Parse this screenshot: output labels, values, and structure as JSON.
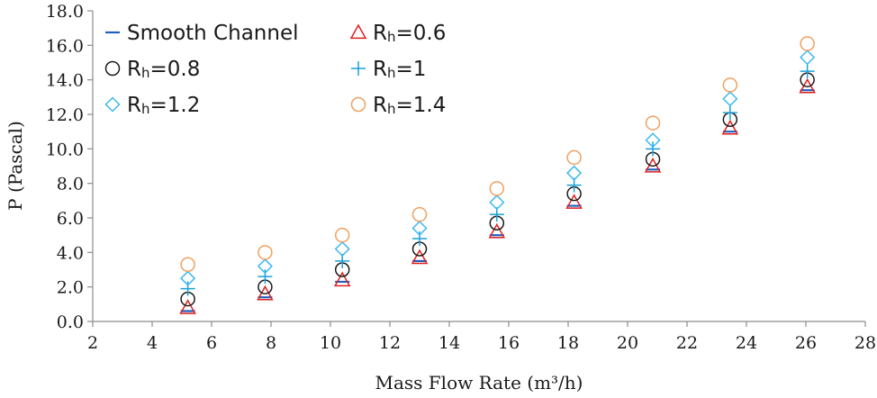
{
  "chart_data": {
    "type": "scatter",
    "title": "",
    "xlabel": "Mass Flow Rate (m³/h)",
    "ylabel": "P (Pascal)",
    "xlim": [
      2,
      28
    ],
    "ylim": [
      0,
      18
    ],
    "x_ticks": [
      "2",
      "4",
      "6",
      "8",
      "10",
      "12",
      "14",
      "16",
      "18",
      "20",
      "22",
      "24",
      "26",
      "28"
    ],
    "y_ticks": [
      "0.0",
      "2.0",
      "4.0",
      "6.0",
      "8.0",
      "10.0",
      "12.0",
      "14.0",
      "16.0",
      "18.0"
    ],
    "x": [
      5.2,
      7.8,
      10.4,
      13.0,
      15.6,
      18.2,
      20.85,
      23.45,
      26.05
    ],
    "series": [
      {
        "name": "Smooth Channel",
        "label_main": "Smooth Channel",
        "label_sub": "",
        "label_tail": "",
        "marker": "dash",
        "color": "#1f5fbf",
        "values": [
          0.6,
          1.4,
          2.3,
          3.5,
          5.0,
          6.7,
          8.8,
          11.0,
          13.4
        ]
      },
      {
        "name": "Rh=0.6",
        "label_main": "R",
        "label_sub": "h",
        "label_tail": "=0.6",
        "marker": "triangle",
        "color": "#e02020",
        "values": [
          0.8,
          1.6,
          2.4,
          3.7,
          5.2,
          6.9,
          9.0,
          11.2,
          13.6
        ]
      },
      {
        "name": "Rh=0.8",
        "label_main": "R",
        "label_sub": "h",
        "label_tail": "=0.8",
        "marker": "circle",
        "color": "#1a1a1a",
        "values": [
          1.3,
          2.0,
          3.0,
          4.2,
          5.7,
          7.4,
          9.4,
          11.7,
          14.0
        ]
      },
      {
        "name": "Rh=1",
        "label_main": "R",
        "label_sub": "h",
        "label_tail": "=1",
        "marker": "plus",
        "color": "#1aa0d8",
        "values": [
          1.9,
          2.6,
          3.5,
          4.8,
          6.2,
          7.9,
          10.0,
          12.1,
          14.5
        ]
      },
      {
        "name": "Rh=1.2",
        "label_main": "R",
        "label_sub": "h",
        "label_tail": "=1.2",
        "marker": "diamond",
        "color": "#3cb8ee",
        "values": [
          2.5,
          3.2,
          4.2,
          5.4,
          6.9,
          8.6,
          10.5,
          12.9,
          15.3
        ]
      },
      {
        "name": "Rh=1.4",
        "label_main": "R",
        "label_sub": "h",
        "label_tail": "=1.4",
        "marker": "circle",
        "color": "#f0a060",
        "values": [
          3.3,
          4.0,
          5.0,
          6.2,
          7.7,
          9.5,
          11.5,
          13.7,
          16.1
        ]
      }
    ],
    "grid": {
      "horizontal": false,
      "vertical": false
    },
    "legend_position": "top-left"
  }
}
